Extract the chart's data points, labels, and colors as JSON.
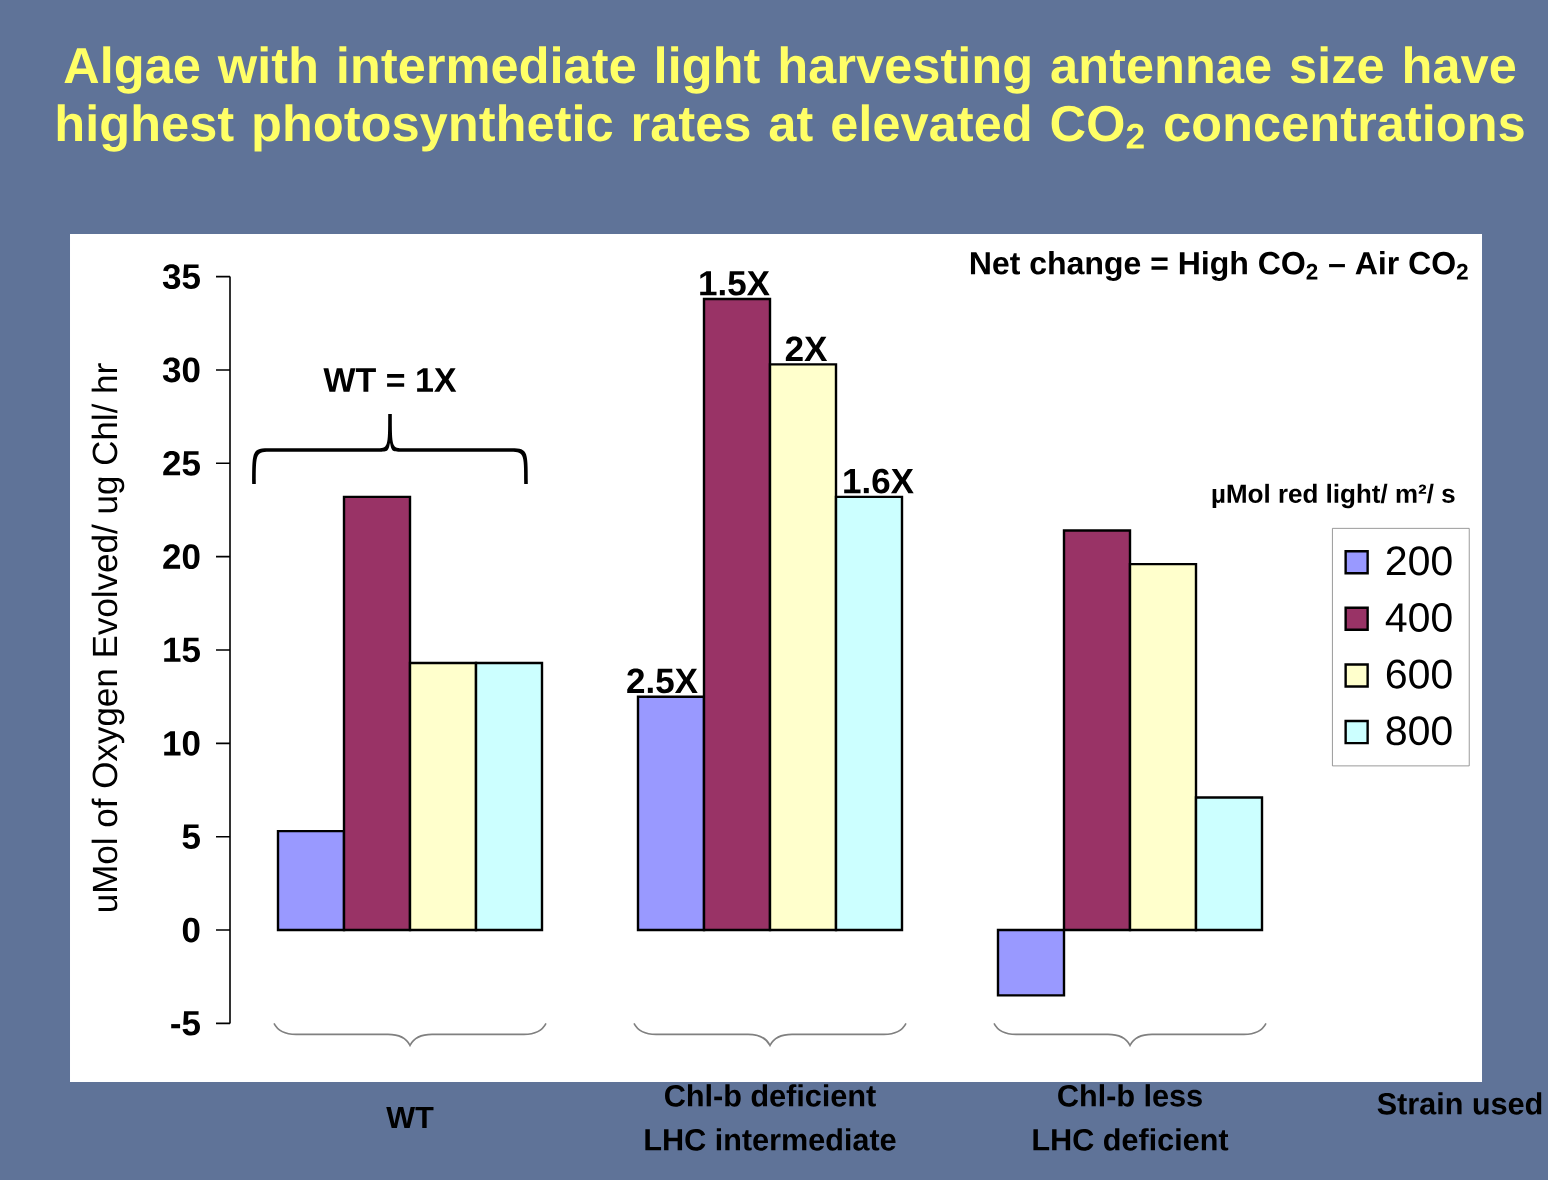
{
  "chart_data": {
    "type": "bar",
    "title": "Algae with intermediate light harvesting antennae size have highest photosynthetic rates at elevated CO$_{2}$ concentrations",
    "categories": [
      "WT",
      "Chl-b deficient LHC intermediate",
      "Chl-b less LHC deficient"
    ],
    "xlabel": "Strain used",
    "ylabel": "uMol of Oxygen Evolved/ ug Chl/ hr",
    "legend_title": "µMol red light/ m²/ s",
    "series": [
      {
        "name": "200",
        "color": "#9999ff",
        "values": [
          5.3,
          12.5,
          -3.5
        ]
      },
      {
        "name": "400",
        "color": "#993366",
        "values": [
          23.2,
          33.8,
          21.4
        ]
      },
      {
        "name": "600",
        "color": "#ffffcc",
        "values": [
          14.3,
          30.3,
          19.6
        ]
      },
      {
        "name": "800",
        "color": "#ccffff",
        "values": [
          14.3,
          23.2,
          7.1
        ]
      }
    ],
    "ylim": [
      -5,
      35
    ],
    "yticks": [
      -5,
      0,
      5,
      10,
      15,
      20,
      25,
      30,
      35
    ],
    "legend": "right",
    "annotations": [
      "Net change = High CO$_{2}$ – Air CO$_{2}$",
      "WT = 1X",
      {
        "text": "2.5X",
        "x": "Chl-b deficient LHC intermediate",
        "y": 12.5
      },
      {
        "text": "1.5X",
        "x": "Chl-b deficient LHC intermediate",
        "y": 33.8
      },
      {
        "text": "2X",
        "x": "Chl-b deficient LHC intermediate",
        "y": 30.3
      },
      {
        "text": "1.6X",
        "x": "Chl-b deficient LHC intermediate",
        "y": 23.2
      }
    ]
  }
}
